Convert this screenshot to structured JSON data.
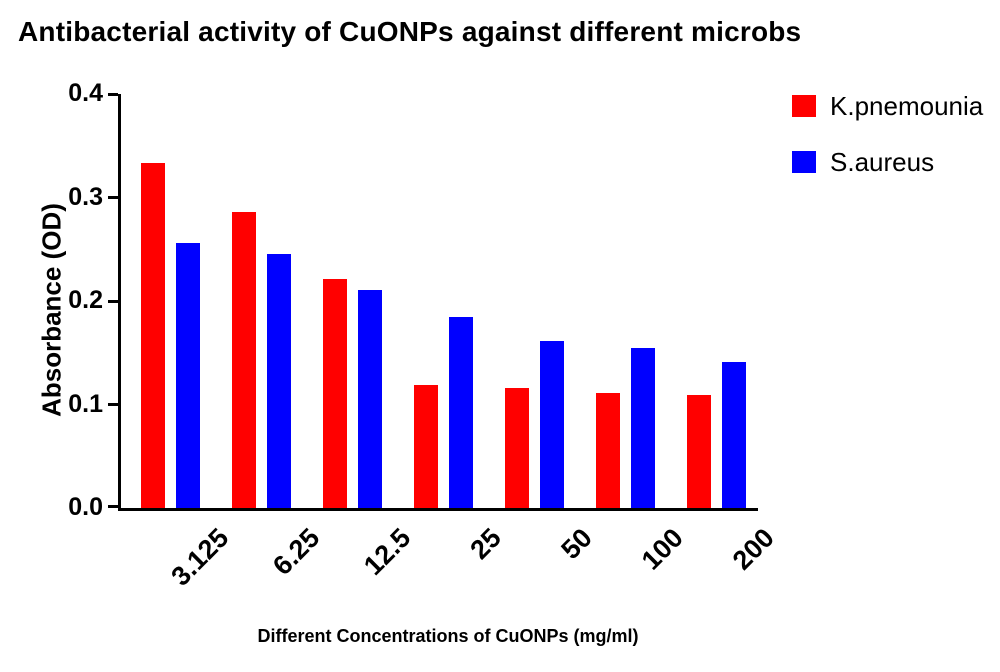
{
  "chart_data": {
    "type": "bar",
    "title": "Antibacterial activity of CuONPs against different microbs",
    "xlabel": "Different Concentrations of CuONPs (mg/ml)",
    "ylabel": "Absorbance (OD)",
    "categories": [
      "3.125",
      "6.25",
      "12.5",
      "25",
      "50",
      "100",
      "200"
    ],
    "series": [
      {
        "name": "K.pnemounia",
        "color": "#ff0000",
        "values": [
          0.333,
          0.286,
          0.221,
          0.119,
          0.116,
          0.111,
          0.109
        ]
      },
      {
        "name": "S.aureus",
        "color": "#0000ff",
        "values": [
          0.256,
          0.245,
          0.211,
          0.185,
          0.161,
          0.155,
          0.141
        ]
      }
    ],
    "ylim": [
      0.0,
      0.4
    ],
    "yticks": [
      0.0,
      0.1,
      0.2,
      0.3,
      0.4
    ],
    "ytick_format_decimals": 1,
    "legend_position": "top-right",
    "grid": false,
    "axis_color": "#000000",
    "background_color": "#ffffff"
  }
}
